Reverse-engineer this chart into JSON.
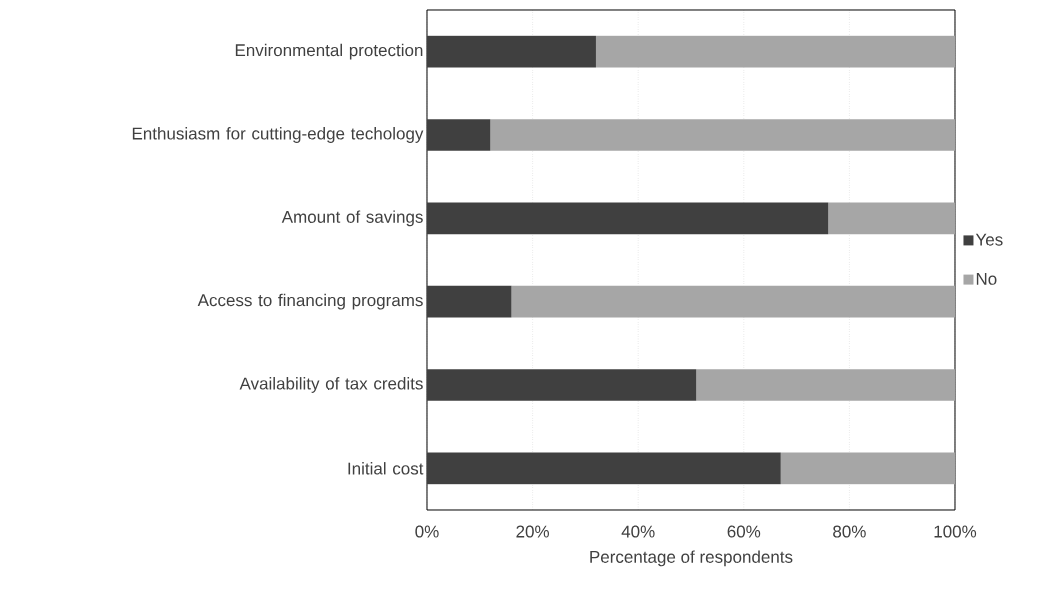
{
  "chart_data": {
    "type": "bar",
    "orientation": "horizontal",
    "stacked": true,
    "xlabel": "Percentage of respondents",
    "categories": [
      "Environmental protection",
      "Enthusiasm for cutting-edge techology",
      "Amount of savings",
      "Access to financing programs",
      "Availability of tax credits",
      "Initial cost"
    ],
    "series": [
      {
        "name": "Yes",
        "color": "#404040",
        "values": [
          32,
          12,
          76,
          16,
          51,
          67
        ]
      },
      {
        "name": "No",
        "color": "#a6a6a6",
        "values": [
          68,
          88,
          24,
          84,
          49,
          33
        ]
      }
    ],
    "xlim": [
      0,
      100
    ],
    "xticks": [
      {
        "value": 0,
        "label": "0%"
      },
      {
        "value": 20,
        "label": "20%"
      },
      {
        "value": 40,
        "label": "40%"
      },
      {
        "value": 60,
        "label": "60%"
      },
      {
        "value": 80,
        "label": "80%"
      },
      {
        "value": 100,
        "label": "100%"
      }
    ],
    "grid": "x",
    "legend": "right"
  }
}
